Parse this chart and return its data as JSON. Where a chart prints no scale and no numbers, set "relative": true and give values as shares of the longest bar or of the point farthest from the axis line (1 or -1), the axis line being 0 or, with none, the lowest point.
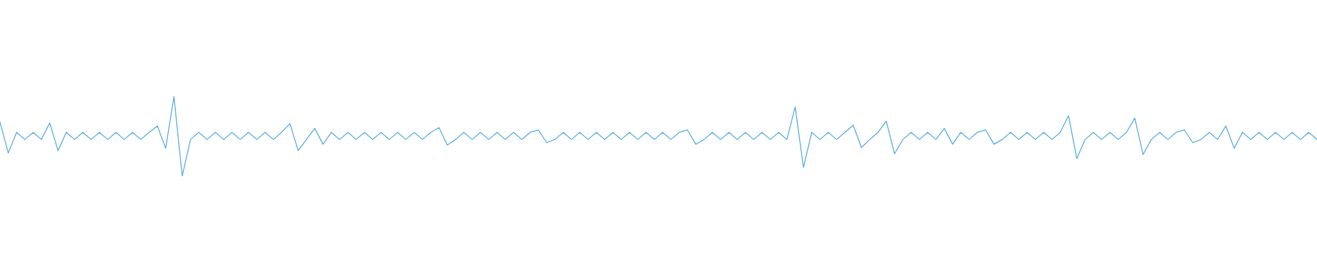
{
  "chart_data": {
    "type": "line",
    "relative": true,
    "tick_labels": false,
    "grid": false,
    "categories": [
      null,
      null,
      null,
      null,
      null,
      null,
      null,
      null,
      null,
      null,
      null,
      null,
      null,
      null,
      null,
      null,
      null,
      null,
      null,
      null,
      null,
      null,
      null,
      null,
      null,
      null,
      null,
      null,
      null,
      null,
      null,
      null,
      null,
      null,
      null,
      null,
      null,
      null,
      null,
      null,
      null,
      null,
      null,
      null,
      null,
      null,
      null,
      null,
      null,
      null,
      null,
      null,
      null,
      null,
      null,
      null,
      null,
      null,
      null,
      null,
      null,
      null,
      null,
      null,
      null,
      null,
      null,
      null,
      null,
      null,
      null,
      null,
      null,
      null,
      null,
      null,
      null,
      null,
      null,
      null,
      null,
      null,
      null,
      null,
      null,
      null,
      null,
      null,
      null,
      null,
      null,
      null,
      null,
      null,
      null,
      null,
      null,
      null,
      null,
      null,
      null,
      null,
      null,
      null,
      null,
      null,
      null,
      null,
      null,
      null,
      null,
      null,
      null,
      null,
      null,
      null,
      null,
      null,
      null,
      null,
      null,
      null,
      null,
      null,
      null,
      null,
      null,
      null,
      null,
      null,
      null,
      null,
      null,
      null,
      null,
      null,
      null,
      null,
      null,
      null,
      null,
      null,
      null,
      null,
      null,
      null,
      null,
      null,
      null,
      null,
      null,
      null,
      null,
      null,
      null,
      null,
      null,
      null,
      null,
      null
    ],
    "series": [
      {
        "color": "#4da6e0",
        "values": [
          0.68,
          0.29,
          0.55,
          0.46,
          0.55,
          0.46,
          0.67,
          0.32,
          0.55,
          0.46,
          0.55,
          0.46,
          0.55,
          0.46,
          0.55,
          0.46,
          0.55,
          0.46,
          0.55,
          0.63,
          0.35,
          1.0,
          0.0,
          0.46,
          0.55,
          0.46,
          0.55,
          0.46,
          0.55,
          0.46,
          0.55,
          0.46,
          0.55,
          0.46,
          0.55,
          0.66,
          0.32,
          0.46,
          0.6,
          0.4,
          0.55,
          0.46,
          0.55,
          0.46,
          0.55,
          0.46,
          0.55,
          0.46,
          0.55,
          0.46,
          0.55,
          0.46,
          0.55,
          0.61,
          0.39,
          0.46,
          0.55,
          0.46,
          0.55,
          0.46,
          0.55,
          0.46,
          0.55,
          0.46,
          0.55,
          0.58,
          0.42,
          0.46,
          0.55,
          0.46,
          0.55,
          0.46,
          0.55,
          0.46,
          0.55,
          0.46,
          0.55,
          0.46,
          0.55,
          0.46,
          0.55,
          0.46,
          0.55,
          0.58,
          0.4,
          0.46,
          0.55,
          0.46,
          0.55,
          0.46,
          0.55,
          0.46,
          0.55,
          0.46,
          0.55,
          0.46,
          0.87,
          0.11,
          0.55,
          0.46,
          0.55,
          0.46,
          0.55,
          0.64,
          0.36,
          0.46,
          0.55,
          0.69,
          0.28,
          0.46,
          0.55,
          0.46,
          0.55,
          0.46,
          0.6,
          0.4,
          0.55,
          0.46,
          0.55,
          0.58,
          0.4,
          0.46,
          0.55,
          0.46,
          0.55,
          0.46,
          0.55,
          0.46,
          0.55,
          0.76,
          0.22,
          0.46,
          0.55,
          0.46,
          0.55,
          0.46,
          0.55,
          0.73,
          0.27,
          0.46,
          0.55,
          0.46,
          0.55,
          0.58,
          0.42,
          0.46,
          0.55,
          0.46,
          0.63,
          0.35,
          0.55,
          0.46,
          0.55,
          0.46,
          0.55,
          0.46,
          0.55,
          0.46,
          0.55,
          0.46
        ]
      }
    ]
  }
}
